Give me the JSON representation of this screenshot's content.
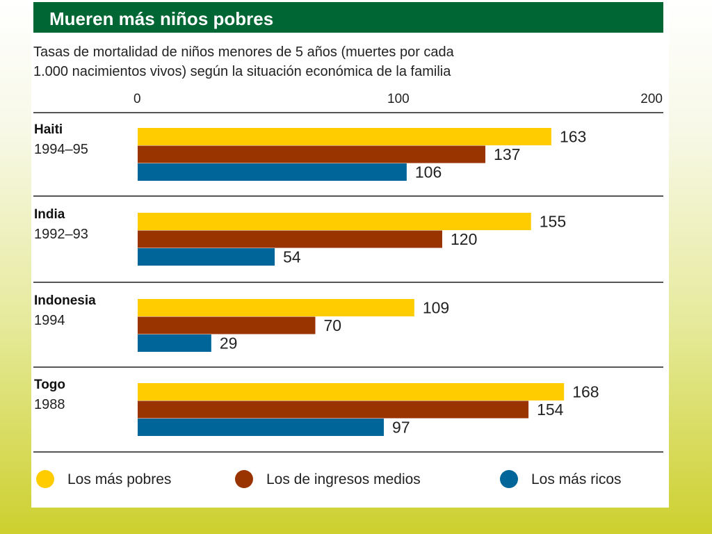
{
  "chart_data": {
    "type": "bar",
    "orientation": "horizontal",
    "title": "Mueren más niños pobres",
    "subtitle": [
      "Tasas de mortalidad de niños menores de 5 años (muertes por cada",
      "1.000 nacimientos vivos) según la situación económica de la familia"
    ],
    "xlim": [
      0,
      200
    ],
    "xticks": [
      "0",
      "100",
      "200"
    ],
    "categories": [
      {
        "country": "Haiti",
        "years": "1994–95"
      },
      {
        "country": "India",
        "years": "1992–93"
      },
      {
        "country": "Indonesia",
        "years": "1994"
      },
      {
        "country": "Togo",
        "years": "1988"
      }
    ],
    "series": [
      {
        "name": "Los más pobres",
        "color": "#ffcc00",
        "values": [
          163,
          155,
          109,
          168
        ]
      },
      {
        "name": "Los de ingresos medios",
        "color": "#993300",
        "values": [
          137,
          120,
          70,
          154
        ]
      },
      {
        "name": "Los más ricos",
        "color": "#006699",
        "values": [
          106,
          54,
          29,
          97
        ]
      }
    ],
    "legend_position": "bottom",
    "colors": {
      "title_bar": "#006633"
    }
  }
}
